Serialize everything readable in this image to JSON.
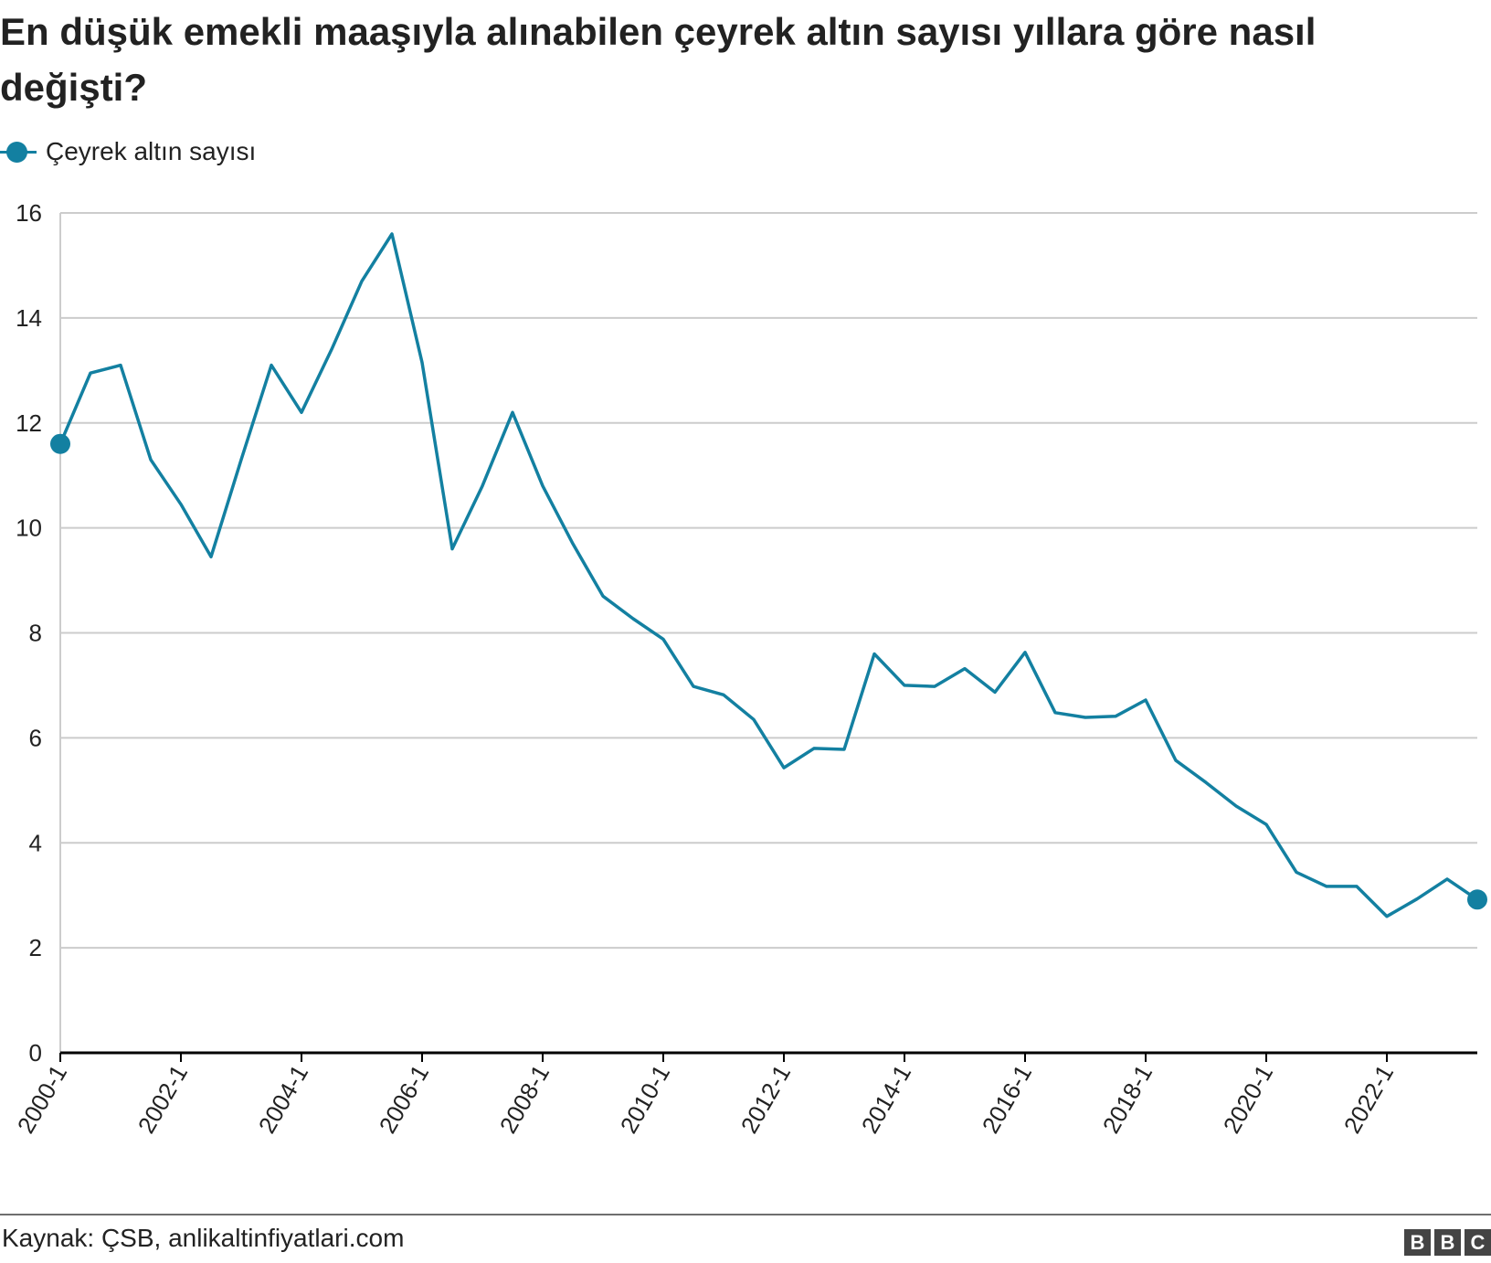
{
  "title": "En düşük emekli maaşıyla alınabilen çeyrek altın sayısı yıllara göre nasıl değişti?",
  "source": "Kaynak: ÇSB, anlikaltinfiyatlari.com",
  "logo": [
    "B",
    "B",
    "C"
  ],
  "colors": {
    "series": "#1380a1",
    "grid": "#cccccc",
    "baseline": "#000000",
    "text": "#222222"
  },
  "chart_data": {
    "type": "line",
    "series": [
      {
        "name": "Çeyrek altın sayısı",
        "x": [
          "2000-1",
          "2000-2",
          "2001-1",
          "2001-2",
          "2002-1",
          "2002-2",
          "2003-1",
          "2003-2",
          "2004-1",
          "2004-2",
          "2005-1",
          "2005-2",
          "2006-1",
          "2006-2",
          "2007-1",
          "2007-2",
          "2008-1",
          "2008-2",
          "2009-1",
          "2009-2",
          "2010-1",
          "2010-2",
          "2011-1",
          "2011-2",
          "2012-1",
          "2012-2",
          "2013-1",
          "2013-2",
          "2014-1",
          "2014-2",
          "2015-1",
          "2015-2",
          "2016-1",
          "2016-2",
          "2017-1",
          "2017-2",
          "2018-1",
          "2018-2",
          "2019-1",
          "2019-2",
          "2020-1",
          "2020-2",
          "2021-1",
          "2021-2",
          "2022-1",
          "2022-2",
          "2023-1",
          "2023-2"
        ],
        "values": [
          11.6,
          12.95,
          13.1,
          11.3,
          10.45,
          9.45,
          11.3,
          13.1,
          12.2,
          13.4,
          14.7,
          15.6,
          13.15,
          9.6,
          10.8,
          12.2,
          10.8,
          9.7,
          8.7,
          8.27,
          7.88,
          6.98,
          6.82,
          6.35,
          5.43,
          5.8,
          5.78,
          7.6,
          7.0,
          6.98,
          7.32,
          6.87,
          7.63,
          6.48,
          6.39,
          6.41,
          6.72,
          5.57,
          5.15,
          4.7,
          4.35,
          3.44,
          3.17,
          3.17,
          2.6,
          2.93,
          3.31,
          2.92
        ]
      }
    ],
    "xticks": [
      "2000-1",
      "2002-1",
      "2004-1",
      "2006-1",
      "2008-1",
      "2010-1",
      "2012-1",
      "2014-1",
      "2016-1",
      "2018-1",
      "2020-1",
      "2022-1"
    ],
    "yticks": [
      0,
      2,
      4,
      6,
      8,
      10,
      12,
      14,
      16
    ],
    "ylim": [
      0,
      16
    ],
    "xlabel": "",
    "ylabel": "",
    "grid": true,
    "legend": "top-left",
    "markers": "endpoints"
  }
}
